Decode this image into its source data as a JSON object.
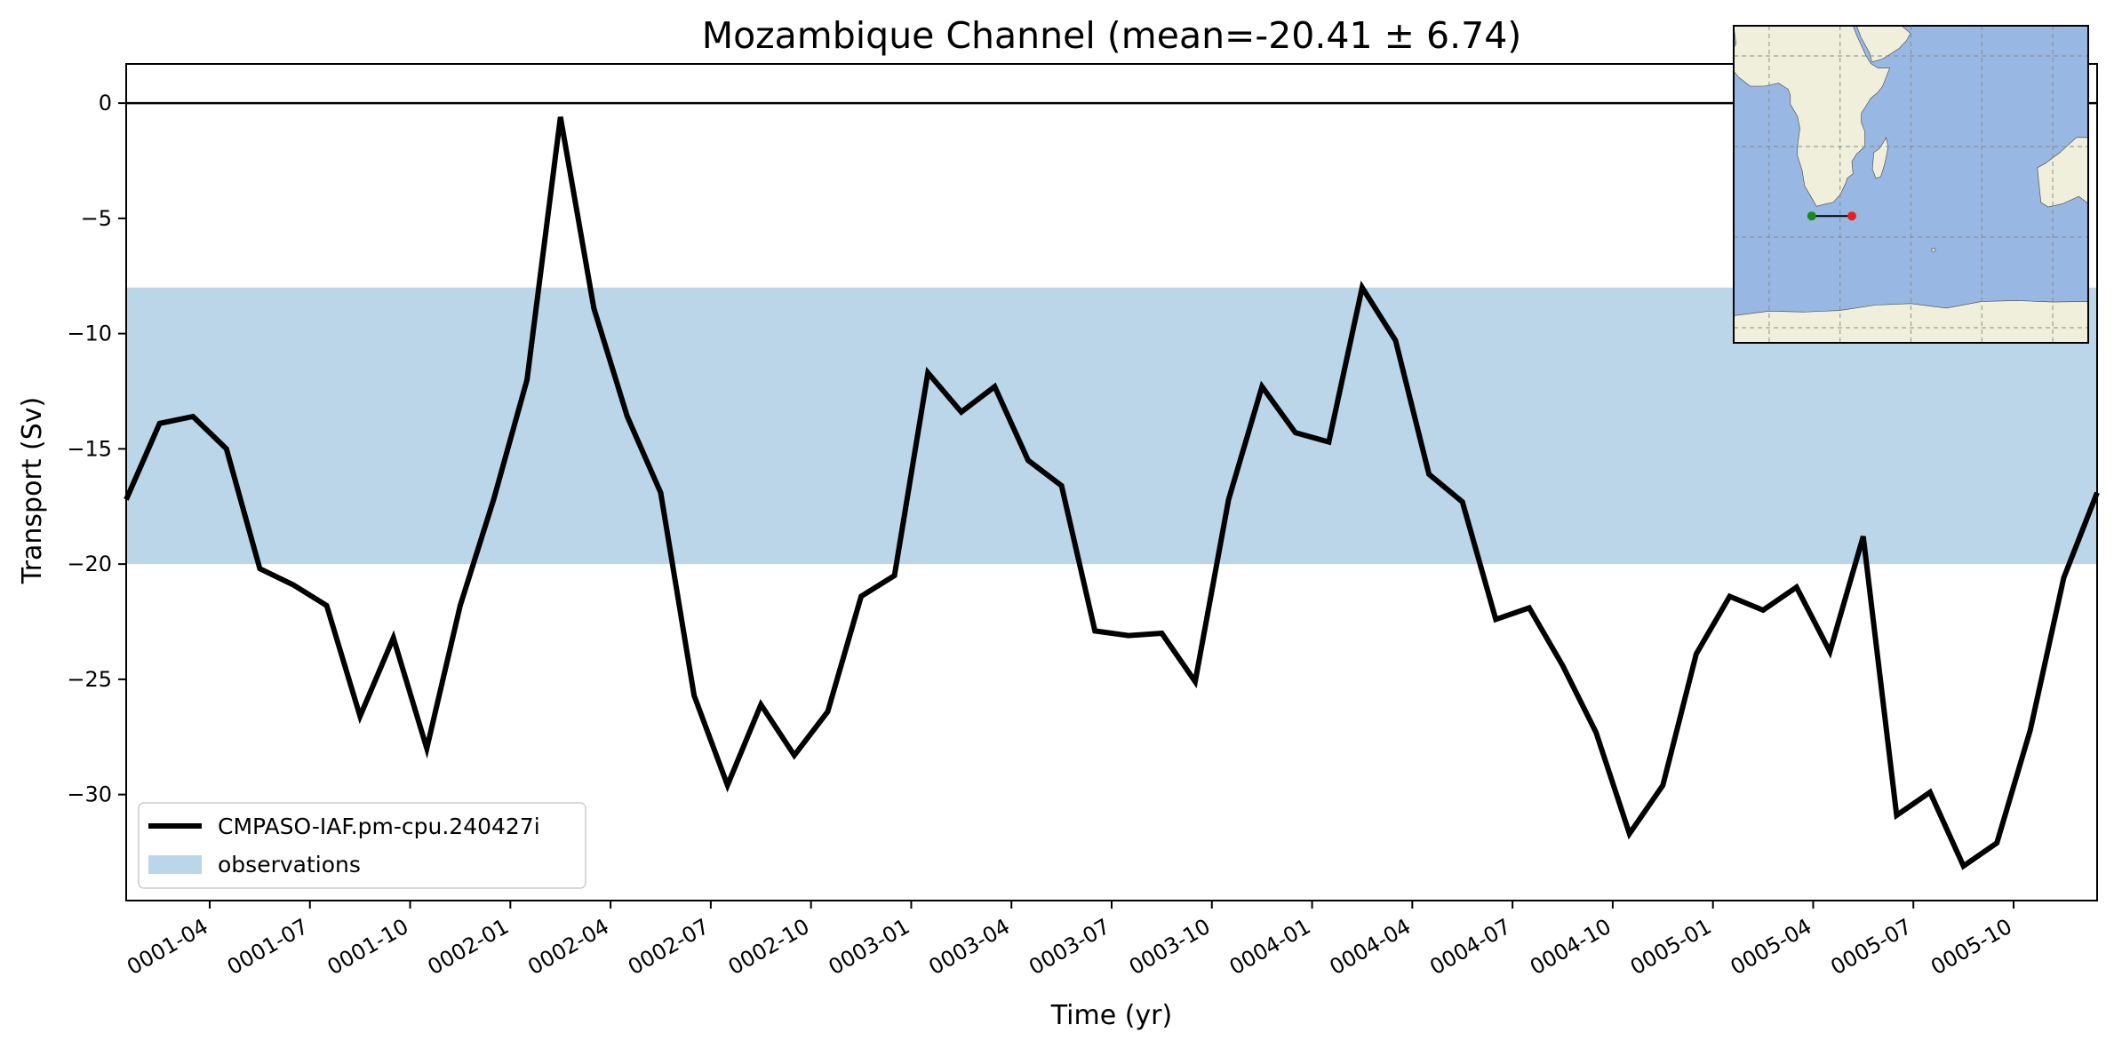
{
  "chart_data": {
    "type": "line",
    "title": "Mozambique Channel (mean=-20.41 ± 6.74)",
    "xlabel": "Time (yr)",
    "ylabel": "Transport (Sv)",
    "ylim": [
      -34.6,
      1.7
    ],
    "yticks": [
      0,
      -5,
      -10,
      -15,
      -20,
      -25,
      -30
    ],
    "x_range_months": [
      0.5,
      59.5
    ],
    "xticks": [
      {
        "month": 3,
        "label": "0001-04"
      },
      {
        "month": 6,
        "label": "0001-07"
      },
      {
        "month": 9,
        "label": "0001-10"
      },
      {
        "month": 12,
        "label": "0002-01"
      },
      {
        "month": 15,
        "label": "0002-04"
      },
      {
        "month": 18,
        "label": "0002-07"
      },
      {
        "month": 21,
        "label": "0002-10"
      },
      {
        "month": 24,
        "label": "0003-01"
      },
      {
        "month": 27,
        "label": "0003-04"
      },
      {
        "month": 30,
        "label": "0003-07"
      },
      {
        "month": 33,
        "label": "0003-10"
      },
      {
        "month": 36,
        "label": "0004-01"
      },
      {
        "month": 39,
        "label": "0004-04"
      },
      {
        "month": 42,
        "label": "0004-07"
      },
      {
        "month": 45,
        "label": "0004-10"
      },
      {
        "month": 48,
        "label": "0005-01"
      },
      {
        "month": 51,
        "label": "0005-04"
      },
      {
        "month": 54,
        "label": "0005-07"
      },
      {
        "month": 57,
        "label": "0005-10"
      }
    ],
    "zero_line": 0,
    "observation_band": [
      -20.0,
      -8.0
    ],
    "series": [
      {
        "name": "CMPASO-IAF.pm-cpu.240427i",
        "color": "#000000",
        "x": [
          0.5,
          1.5,
          2.5,
          3.5,
          4.5,
          5.5,
          6.5,
          7.5,
          8.5,
          9.5,
          10.5,
          11.5,
          12.5,
          13.5,
          14.5,
          15.5,
          16.5,
          17.5,
          18.5,
          19.5,
          20.5,
          21.5,
          22.5,
          23.5,
          24.5,
          25.5,
          26.5,
          27.5,
          28.5,
          29.5,
          30.5,
          31.5,
          32.5,
          33.5,
          34.5,
          35.5,
          36.5,
          37.5,
          38.5,
          39.5,
          40.5,
          41.5,
          42.5,
          43.5,
          44.5,
          45.5,
          46.5,
          47.5,
          48.5,
          49.5,
          50.5,
          51.5,
          52.5,
          53.5,
          54.5,
          55.5,
          56.5,
          57.5,
          58.5,
          59.5
        ],
        "y": [
          -17.2,
          -13.9,
          -13.6,
          -15.0,
          -20.2,
          -20.9,
          -21.8,
          -26.6,
          -23.2,
          -28.0,
          -21.8,
          -17.2,
          -12.0,
          -0.6,
          -8.9,
          -13.6,
          -16.9,
          -25.7,
          -29.6,
          -26.1,
          -28.3,
          -26.4,
          -21.4,
          -20.5,
          -11.7,
          -13.4,
          -12.3,
          -15.5,
          -16.6,
          -22.9,
          -23.1,
          -23.0,
          -25.1,
          -17.2,
          -12.3,
          -14.3,
          -14.7,
          -8.0,
          -10.3,
          -16.1,
          -17.3,
          -22.4,
          -21.9,
          -24.4,
          -27.3,
          -31.7,
          -29.6,
          -23.9,
          -21.4,
          -22.0,
          -21.0,
          -23.8,
          -18.8,
          -30.9,
          -29.9,
          -33.1,
          -32.1,
          -27.2,
          -20.6,
          -16.9
        ]
      }
    ],
    "legend": {
      "position": "lower-left",
      "entries": [
        "CMPASO-IAF.pm-cpu.240427i",
        "observations"
      ]
    },
    "colors": {
      "band": "#bad6e8",
      "ocean": "#98b7e2",
      "land": "#efefdc",
      "start_point": "#1a8a1a",
      "end_point": "#ee1c1c"
    },
    "inset_map": {
      "section_start": [
        18,
        -38
      ],
      "section_end": [
        35,
        -38
      ],
      "lon_range": [
        -15,
        135
      ],
      "lat_range": [
        -80,
        25
      ],
      "grid_lons": [
        0,
        30,
        60,
        90,
        120
      ],
      "grid_lats": [
        15,
        -15,
        -45,
        -75
      ]
    }
  }
}
